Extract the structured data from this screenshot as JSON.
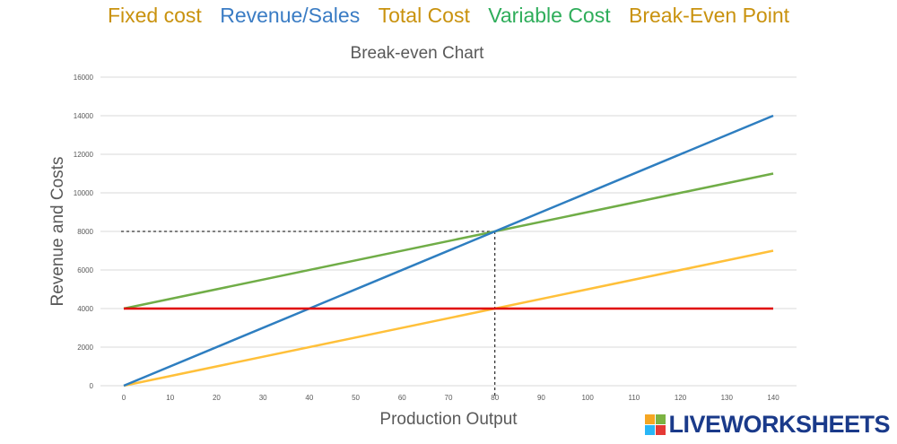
{
  "word_bank": [
    {
      "text": "Fixed cost",
      "color": "#C9920E"
    },
    {
      "text": "Revenue/Sales",
      "color": "#3A7CC4"
    },
    {
      "text": "Total Cost",
      "color": "#C9920E"
    },
    {
      "text": "Variable Cost",
      "color": "#2EAD5A"
    },
    {
      "text": "Break-Even Point",
      "color": "#C9920E"
    }
  ],
  "logo": {
    "text": "LIVEWORKSHEETS",
    "tile_colors": [
      "#F5A623",
      "#7CB342",
      "#29B6F6",
      "#E53935"
    ]
  },
  "chart_data": {
    "type": "line",
    "title": "Break-even Chart",
    "xlabel": "Production Output",
    "ylabel": "Revenue and Costs",
    "xlim": [
      0,
      140
    ],
    "ylim": [
      0,
      16000
    ],
    "x_ticks": [
      0,
      10,
      20,
      30,
      40,
      50,
      60,
      70,
      80,
      90,
      100,
      110,
      120,
      130,
      140
    ],
    "y_ticks": [
      0,
      2000,
      4000,
      6000,
      8000,
      10000,
      12000,
      14000,
      16000
    ],
    "grid": "horizontal",
    "series": [
      {
        "color": "#2E7EC0",
        "x": [
          0,
          140
        ],
        "y": [
          0,
          14000
        ]
      },
      {
        "color": "#70AD47",
        "x": [
          0,
          140
        ],
        "y": [
          4000,
          11000
        ]
      },
      {
        "color": "#FFC03A",
        "x": [
          0,
          140
        ],
        "y": [
          0,
          7000
        ]
      },
      {
        "color": "#E00000",
        "x": [
          0,
          140
        ],
        "y": [
          4000,
          4000
        ]
      }
    ],
    "break_even": {
      "x": 80,
      "y": 8000
    }
  }
}
